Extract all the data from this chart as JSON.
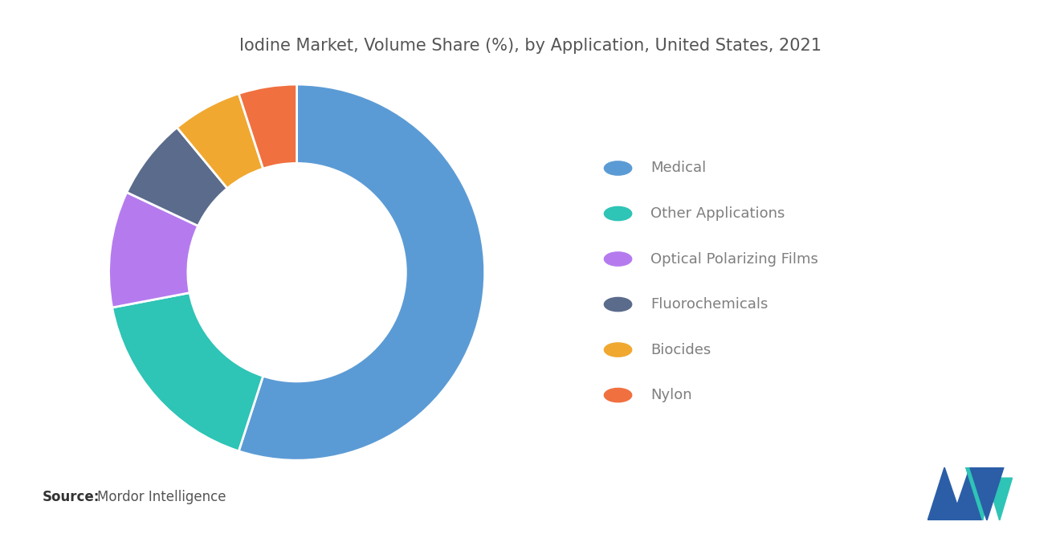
{
  "title": "Iodine Market, Volume Share (%), by Application, United States, 2021",
  "labels": [
    "Medical",
    "Other Applications",
    "Optical Polarizing Films",
    "Fluorochemicals",
    "Biocides",
    "Nylon"
  ],
  "values": [
    55,
    17,
    10,
    7,
    6,
    5
  ],
  "colors": [
    "#5B9BD5",
    "#2EC4B6",
    "#B57BEE",
    "#5A6B8C",
    "#F0A830",
    "#F07040"
  ],
  "source_bold": "Source:",
  "source_text": "Mordor Intelligence",
  "background_color": "#FFFFFF",
  "legend_text_color": "#7F7F7F",
  "title_color": "#555555",
  "title_fontsize": 15,
  "legend_fontsize": 13,
  "source_fontsize": 12
}
